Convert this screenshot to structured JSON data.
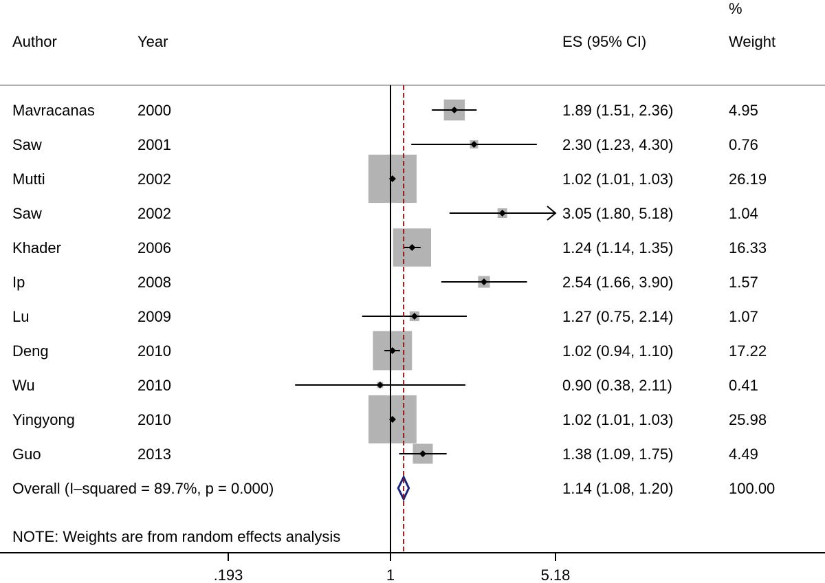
{
  "headers": {
    "author": "Author",
    "year": "Year",
    "es": "ES (95% CI)",
    "weight_line1": "%",
    "weight_line2": "Weight"
  },
  "note": "NOTE: Weights are from random effects analysis",
  "colors": {
    "box": "#b3b3b3",
    "line": "#000000",
    "null_line": "#000000",
    "overall_line": "#8b1a1a",
    "diamond": "#1a237e",
    "header_rule": "#b0b0b0"
  },
  "chart_data": {
    "type": "forest",
    "x_scale": "log",
    "null_value": 1,
    "xlim": [
      0.193,
      5.18
    ],
    "xticks": [
      {
        "value": 0.193,
        "label": ".193"
      },
      {
        "value": 1,
        "label": "1"
      },
      {
        "value": 5.18,
        "label": "5.18"
      }
    ],
    "studies": [
      {
        "author": "Mavracanas",
        "year": "2000",
        "es": 1.89,
        "lo": 1.51,
        "hi": 2.36,
        "ci_text": "1.89 (1.51, 2.36)",
        "weight": 4.95,
        "weight_text": "4.95"
      },
      {
        "author": "Saw",
        "year": "2001",
        "es": 2.3,
        "lo": 1.23,
        "hi": 4.3,
        "ci_text": "2.30 (1.23, 4.30)",
        "weight": 0.76,
        "weight_text": "0.76"
      },
      {
        "author": "Mutti",
        "year": "2002",
        "es": 1.02,
        "lo": 1.01,
        "hi": 1.03,
        "ci_text": "1.02 (1.01, 1.03)",
        "weight": 26.19,
        "weight_text": "26.19"
      },
      {
        "author": "Saw",
        "year": "2002",
        "es": 3.05,
        "lo": 1.8,
        "hi": 5.18,
        "ci_text": "3.05 (1.80, 5.18)",
        "weight": 1.04,
        "weight_text": "1.04",
        "arrow_right": true
      },
      {
        "author": "Khader",
        "year": "2006",
        "es": 1.24,
        "lo": 1.14,
        "hi": 1.35,
        "ci_text": "1.24 (1.14, 1.35)",
        "weight": 16.33,
        "weight_text": "16.33"
      },
      {
        "author": "Ip",
        "year": "2008",
        "es": 2.54,
        "lo": 1.66,
        "hi": 3.9,
        "ci_text": "2.54 (1.66, 3.90)",
        "weight": 1.57,
        "weight_text": "1.57"
      },
      {
        "author": "Lu",
        "year": "2009",
        "es": 1.27,
        "lo": 0.75,
        "hi": 2.14,
        "ci_text": "1.27 (0.75, 2.14)",
        "weight": 1.07,
        "weight_text": "1.07"
      },
      {
        "author": "Deng",
        "year": "2010",
        "es": 1.02,
        "lo": 0.94,
        "hi": 1.1,
        "ci_text": "1.02 (0.94, 1.10)",
        "weight": 17.22,
        "weight_text": "17.22"
      },
      {
        "author": "Wu",
        "year": "2010",
        "es": 0.9,
        "lo": 0.38,
        "hi": 2.11,
        "ci_text": "0.90 (0.38, 2.11)",
        "weight": 0.41,
        "weight_text": "0.41"
      },
      {
        "author": "Yingyong",
        "year": "2010",
        "es": 1.02,
        "lo": 1.01,
        "hi": 1.03,
        "ci_text": "1.02 (1.01, 1.03)",
        "weight": 25.98,
        "weight_text": "25.98"
      },
      {
        "author": "Guo",
        "year": "2013",
        "es": 1.38,
        "lo": 1.09,
        "hi": 1.75,
        "ci_text": "1.38 (1.09, 1.75)",
        "weight": 4.49,
        "weight_text": "4.49"
      }
    ],
    "overall": {
      "label": "Overall  (I–squared = 89.7%, p = 0.000)",
      "es": 1.14,
      "lo": 1.08,
      "hi": 1.2,
      "ci_text": "1.14 (1.08, 1.20)",
      "weight_text": "100.00"
    }
  }
}
